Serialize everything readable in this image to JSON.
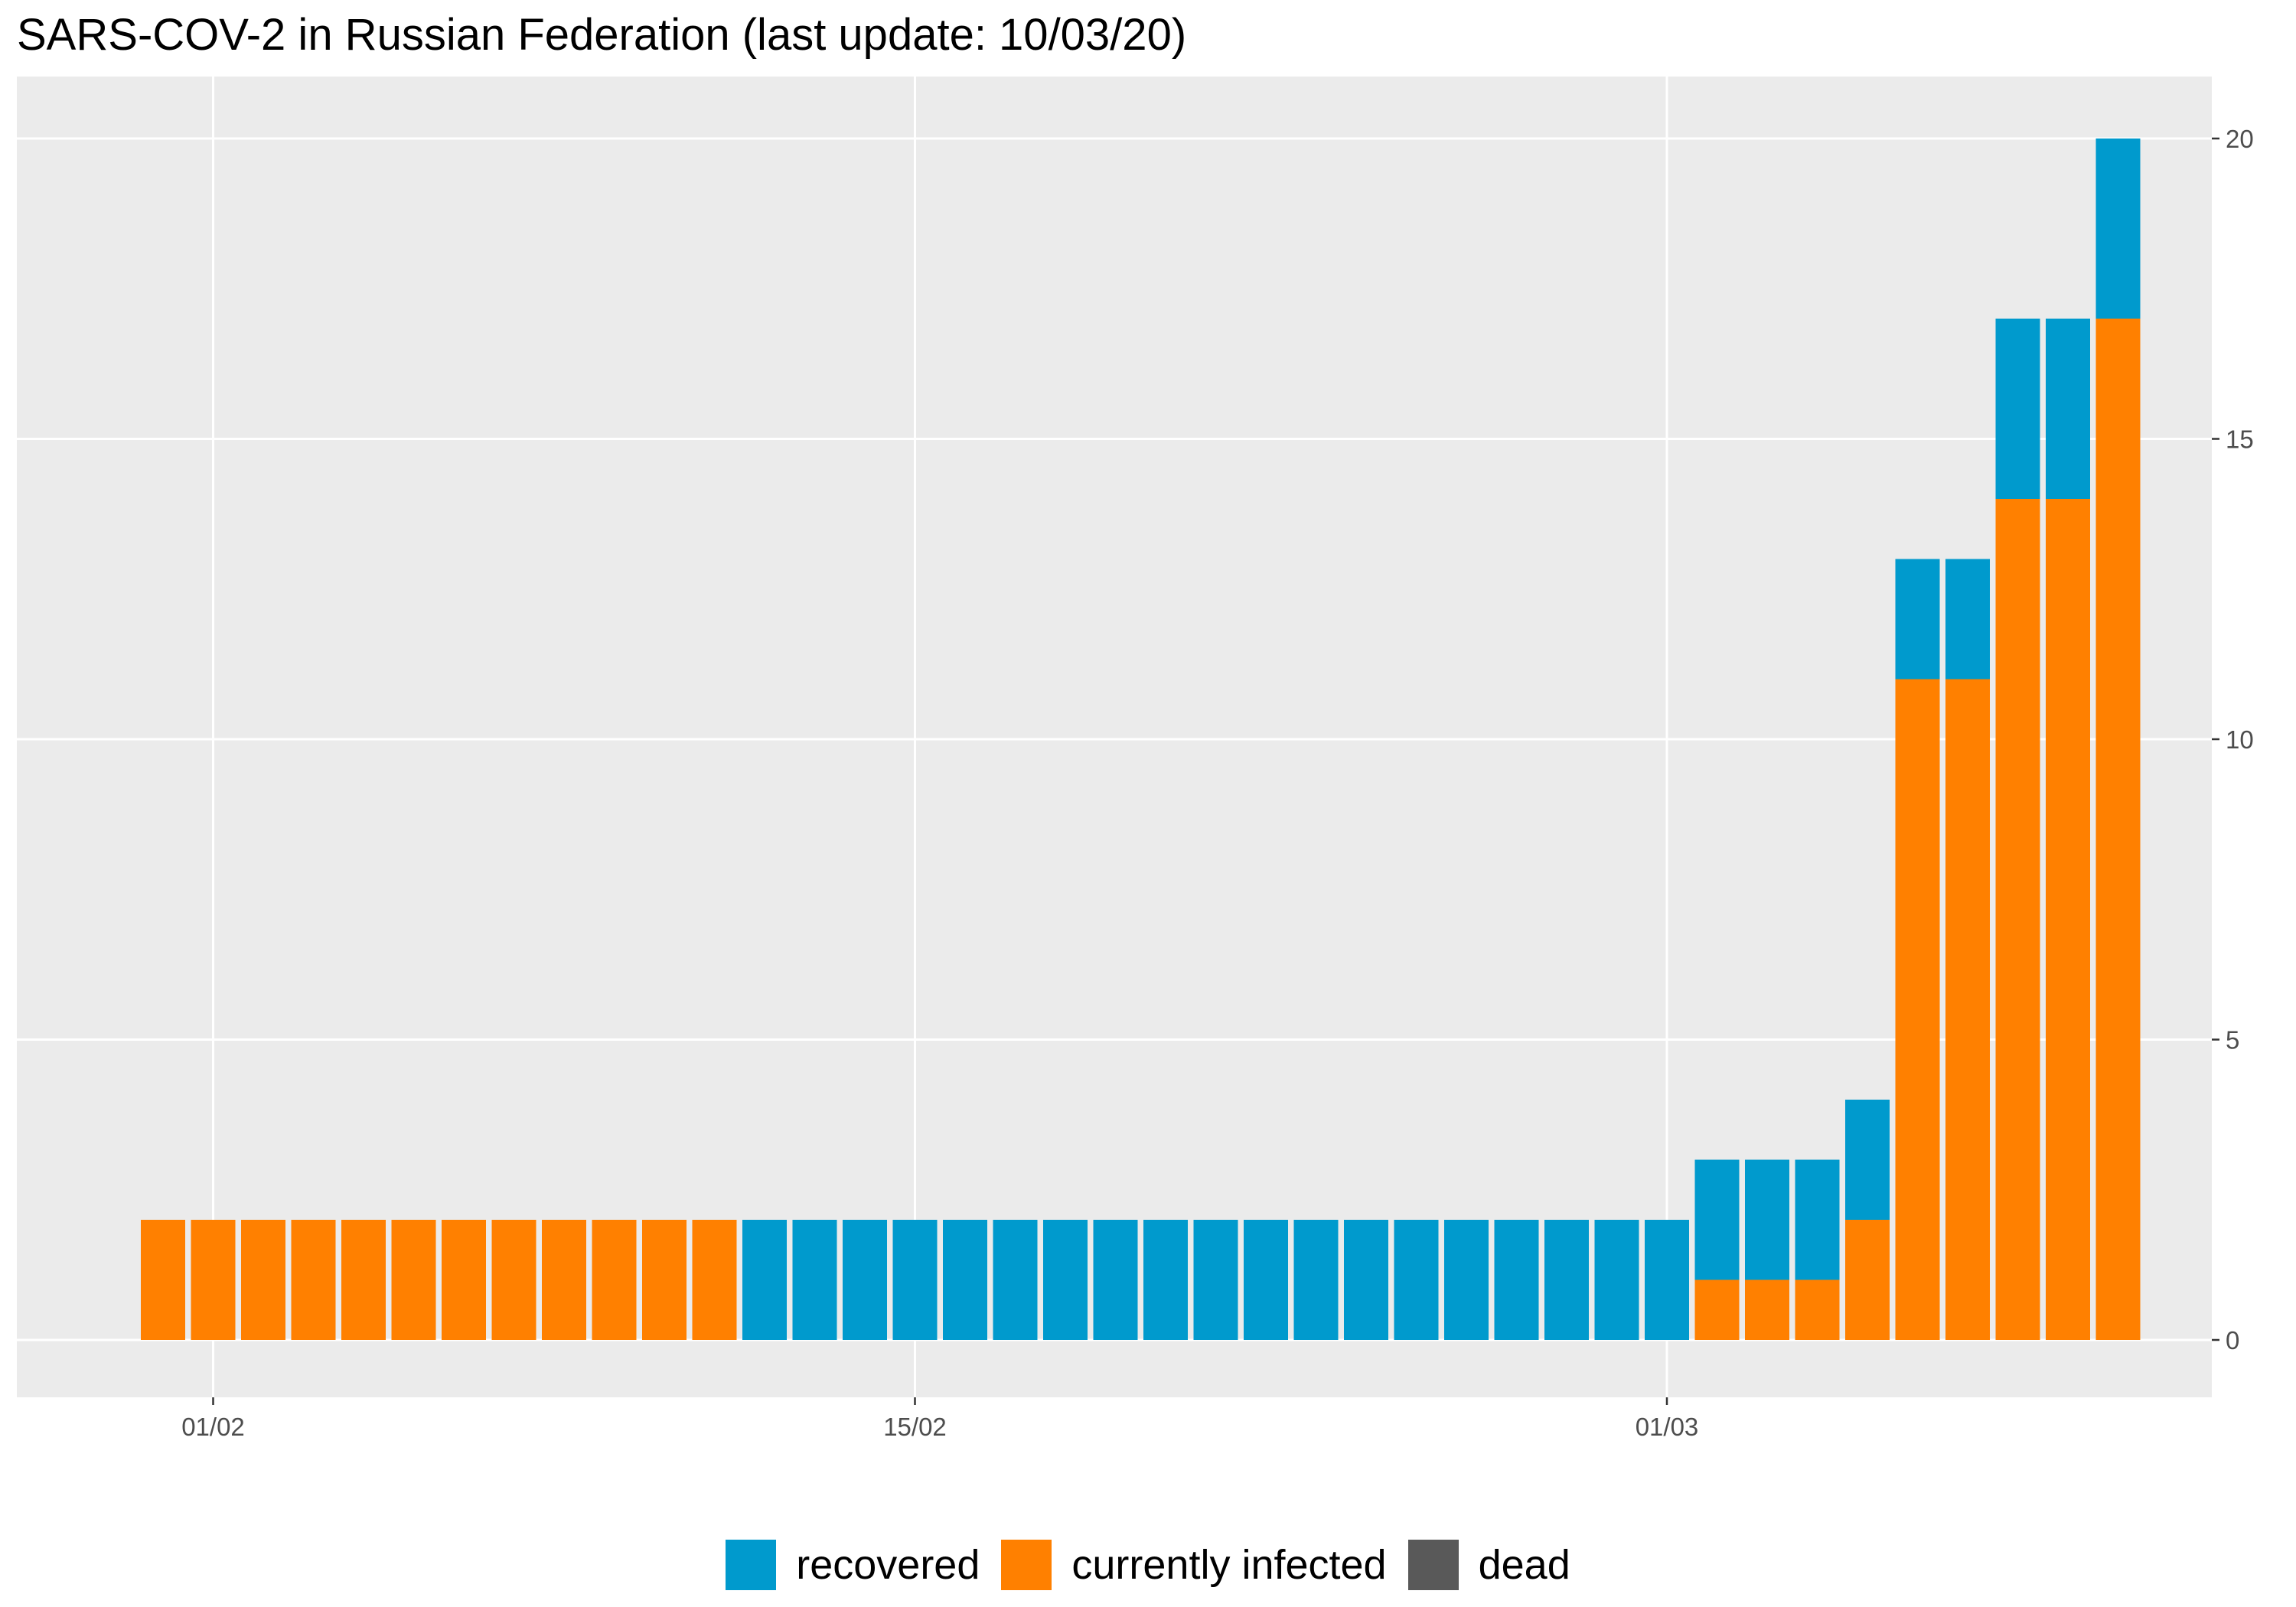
{
  "chart_data": {
    "type": "bar",
    "stacked": true,
    "title": "SARS-COV-2 in Russian Federation (last update: 10/03/20)",
    "xlabel": "",
    "ylabel": "",
    "ylim": [
      0,
      20
    ],
    "y_ticks": [
      0,
      5,
      10,
      15,
      20
    ],
    "y_axis_position": "right",
    "x_ticks": [
      {
        "date": "2020-02-01",
        "label": "01/02"
      },
      {
        "date": "2020-02-15",
        "label": "15/02"
      },
      {
        "date": "2020-03-01",
        "label": "01/03"
      }
    ],
    "x": [
      "2020-01-31",
      "2020-02-01",
      "2020-02-02",
      "2020-02-03",
      "2020-02-04",
      "2020-02-05",
      "2020-02-06",
      "2020-02-07",
      "2020-02-08",
      "2020-02-09",
      "2020-02-10",
      "2020-02-11",
      "2020-02-12",
      "2020-02-13",
      "2020-02-14",
      "2020-02-15",
      "2020-02-16",
      "2020-02-17",
      "2020-02-18",
      "2020-02-19",
      "2020-02-20",
      "2020-02-21",
      "2020-02-22",
      "2020-02-23",
      "2020-02-24",
      "2020-02-25",
      "2020-02-26",
      "2020-02-27",
      "2020-02-28",
      "2020-02-29",
      "2020-03-01",
      "2020-03-02",
      "2020-03-03",
      "2020-03-04",
      "2020-03-05",
      "2020-03-06",
      "2020-03-07",
      "2020-03-08",
      "2020-03-09",
      "2020-03-10"
    ],
    "series": [
      {
        "name": "currently infected",
        "color": "#FF8000",
        "values": [
          2,
          2,
          2,
          2,
          2,
          2,
          2,
          2,
          2,
          2,
          2,
          2,
          0,
          0,
          0,
          0,
          0,
          0,
          0,
          0,
          0,
          0,
          0,
          0,
          0,
          0,
          0,
          0,
          0,
          0,
          0,
          1,
          1,
          1,
          2,
          11,
          11,
          14,
          14,
          17
        ]
      },
      {
        "name": "recovered",
        "color": "#009ACD",
        "values": [
          0,
          0,
          0,
          0,
          0,
          0,
          0,
          0,
          0,
          0,
          0,
          0,
          2,
          2,
          2,
          2,
          2,
          2,
          2,
          2,
          2,
          2,
          2,
          2,
          2,
          2,
          2,
          2,
          2,
          2,
          2,
          2,
          2,
          2,
          2,
          2,
          2,
          3,
          3,
          3
        ]
      },
      {
        "name": "dead",
        "color": "#595959",
        "values": [
          0,
          0,
          0,
          0,
          0,
          0,
          0,
          0,
          0,
          0,
          0,
          0,
          0,
          0,
          0,
          0,
          0,
          0,
          0,
          0,
          0,
          0,
          0,
          0,
          0,
          0,
          0,
          0,
          0,
          0,
          0,
          0,
          0,
          0,
          0,
          0,
          0,
          0,
          0,
          0
        ]
      }
    ],
    "stack_order": [
      "currently infected",
      "recovered",
      "dead"
    ],
    "grid": true,
    "panel_background": "#EBEBEB",
    "legend_position": "bottom",
    "legend": [
      {
        "label": "recovered",
        "color": "#009ACD"
      },
      {
        "label": "currently infected",
        "color": "#FF8000"
      },
      {
        "label": "dead",
        "color": "#595959"
      }
    ]
  }
}
